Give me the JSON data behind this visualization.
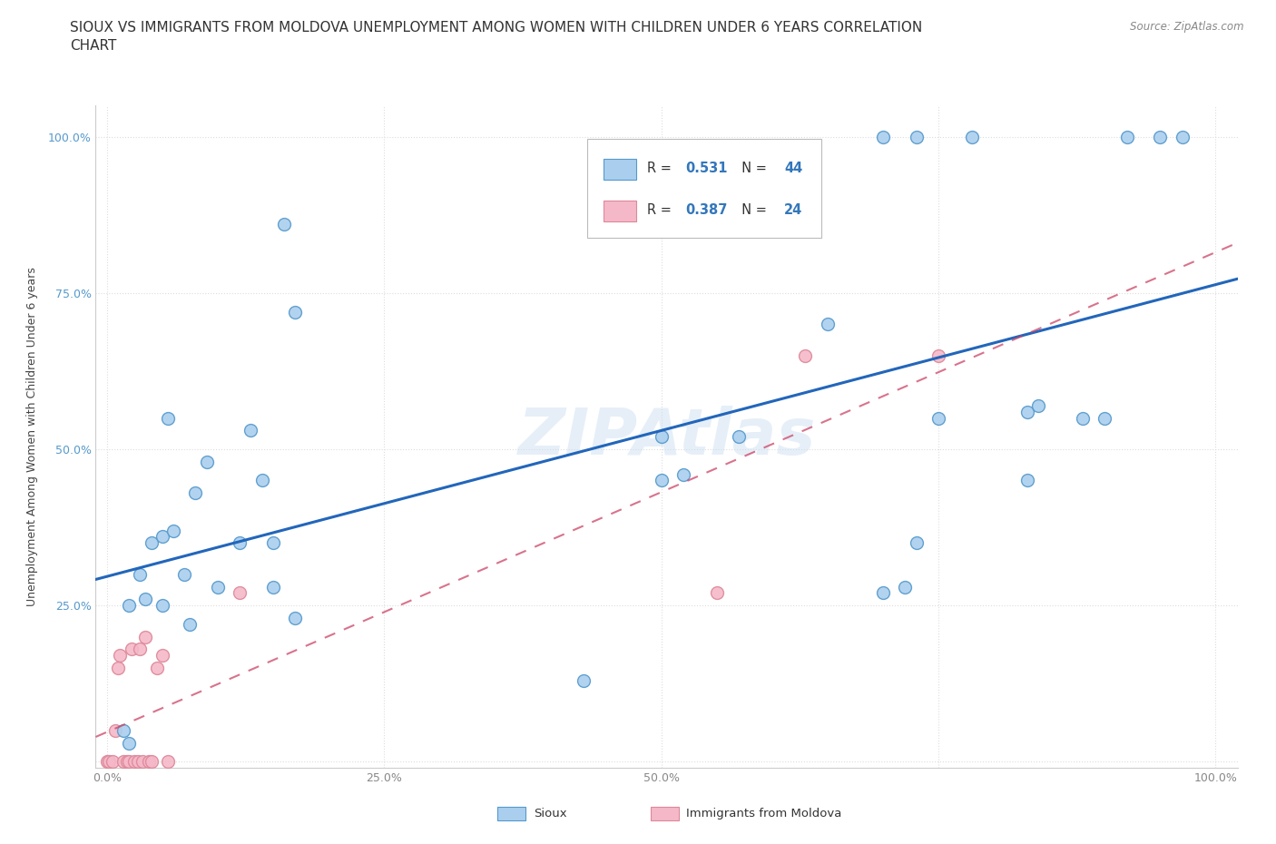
{
  "title": "SIOUX VS IMMIGRANTS FROM MOLDOVA UNEMPLOYMENT AMONG WOMEN WITH CHILDREN UNDER 6 YEARS CORRELATION\nCHART",
  "source": "Source: ZipAtlas.com",
  "ylabel": "Unemployment Among Women with Children Under 6 years",
  "xlabel": "",
  "sioux_R": 0.531,
  "sioux_N": 44,
  "moldova_R": 0.387,
  "moldova_N": 24,
  "sioux_color": "#aacfee",
  "sioux_edge_color": "#5599cc",
  "sioux_line_color": "#2266bb",
  "moldova_color": "#f5b8c8",
  "moldova_edge_color": "#dd8899",
  "moldova_line_color": "#cc4466",
  "background_color": "#ffffff",
  "watermark": "ZIPAtlas",
  "sioux_x": [
    1.5,
    2.0,
    3.0,
    4.0,
    5.0,
    5.0,
    6.0,
    7.0,
    7.5,
    8.0,
    9.0,
    10.0,
    12.0,
    13.0,
    14.0,
    15.0,
    16.0,
    17.0,
    2.0,
    3.5,
    5.5,
    15.0,
    17.0,
    43.0,
    50.0,
    52.0,
    57.0,
    65.0,
    70.0,
    72.0,
    73.0,
    75.0,
    78.0,
    83.0,
    84.0,
    88.0,
    90.0,
    92.0,
    95.0,
    97.0,
    70.0,
    73.0,
    83.0,
    50.0
  ],
  "sioux_y": [
    5.0,
    3.0,
    30.0,
    35.0,
    36.0,
    25.0,
    37.0,
    30.0,
    22.0,
    43.0,
    48.0,
    28.0,
    35.0,
    53.0,
    45.0,
    35.0,
    86.0,
    72.0,
    25.0,
    26.0,
    55.0,
    28.0,
    23.0,
    13.0,
    52.0,
    46.0,
    52.0,
    70.0,
    27.0,
    28.0,
    35.0,
    55.0,
    100.0,
    56.0,
    57.0,
    55.0,
    55.0,
    100.0,
    100.0,
    100.0,
    100.0,
    100.0,
    45.0,
    45.0
  ],
  "moldova_x": [
    0.0,
    0.2,
    0.5,
    0.8,
    1.0,
    1.2,
    1.5,
    1.8,
    2.0,
    2.2,
    2.5,
    2.8,
    3.0,
    3.2,
    3.5,
    3.8,
    4.0,
    4.5,
    5.0,
    5.5,
    12.0,
    55.0,
    63.0,
    75.0
  ],
  "moldova_y": [
    0.0,
    0.0,
    0.0,
    5.0,
    15.0,
    17.0,
    0.0,
    0.0,
    0.0,
    18.0,
    0.0,
    0.0,
    18.0,
    0.0,
    20.0,
    0.0,
    0.0,
    15.0,
    17.0,
    0.0,
    27.0,
    27.0,
    65.0,
    65.0
  ],
  "xlim": [
    -1.0,
    102.0
  ],
  "ylim": [
    -1.0,
    105.0
  ],
  "xticks": [
    0,
    25,
    50,
    75,
    100
  ],
  "xticklabels": [
    "0.0%",
    "25.0%",
    "50.0%",
    "",
    "100.0%"
  ],
  "yticks": [
    0,
    25,
    50,
    75,
    100
  ],
  "yticklabels": [
    "",
    "25.0%",
    "50.0%",
    "75.0%",
    "100.0%"
  ],
  "marker_size": 100,
  "title_fontsize": 11,
  "axis_label_fontsize": 9,
  "tick_fontsize": 9,
  "grid_color": "#dddddd",
  "tick_color_y": "#5599cc",
  "tick_color_x": "#888888"
}
